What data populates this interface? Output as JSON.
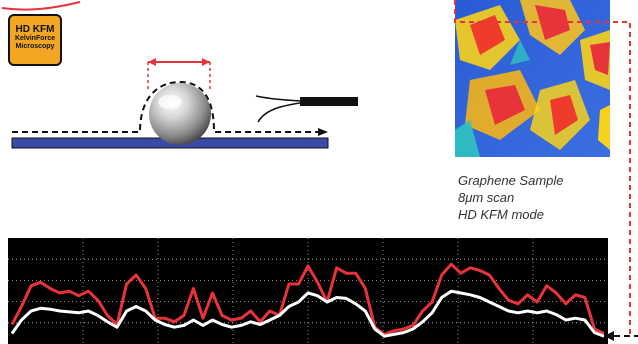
{
  "badge": {
    "title": "HD KFM",
    "subtitle_line1": "KelvinForce",
    "subtitle_line2": "Microscopy",
    "color": "#f2a623"
  },
  "caption": {
    "line1": "Graphene Sample",
    "line2": "8μm scan",
    "line3": "HD KFM mode"
  },
  "colors": {
    "substrate": "#3a4aa8",
    "measurement": "#e8333a",
    "background_profile": "#000000",
    "signal_bright": "#ffffff"
  },
  "icons": [
    "sphere-particle-icon",
    "cantilever-tip-icon",
    "measurement-arrow-icon"
  ],
  "chart_data": {
    "type": "line",
    "grid": true,
    "background": "#000000",
    "series": [
      {
        "color": "#e8333a",
        "values": [
          0.15,
          0.35,
          0.58,
          0.62,
          0.55,
          0.5,
          0.52,
          0.47,
          0.52,
          0.42,
          0.25,
          0.15,
          0.6,
          0.7,
          0.55,
          0.22,
          0.22,
          0.18,
          0.25,
          0.55,
          0.22,
          0.5,
          0.25,
          0.2,
          0.22,
          0.3,
          0.18,
          0.3,
          0.25,
          0.6,
          0.6,
          0.8,
          0.62,
          0.4,
          0.78,
          0.72,
          0.72,
          0.55,
          0.12,
          0.04,
          0.08,
          0.1,
          0.14,
          0.3,
          0.4,
          0.7,
          0.82,
          0.72,
          0.78,
          0.75,
          0.7,
          0.55,
          0.42,
          0.38,
          0.48,
          0.4,
          0.58,
          0.5,
          0.38,
          0.48,
          0.45,
          0.1,
          0.05
        ]
      },
      {
        "color": "#ffffff",
        "values": [
          0.05,
          0.2,
          0.3,
          0.33,
          0.32,
          0.3,
          0.29,
          0.28,
          0.3,
          0.25,
          0.18,
          0.12,
          0.3,
          0.35,
          0.3,
          0.2,
          0.15,
          0.12,
          0.14,
          0.2,
          0.14,
          0.2,
          0.15,
          0.12,
          0.14,
          0.18,
          0.15,
          0.2,
          0.25,
          0.35,
          0.4,
          0.5,
          0.47,
          0.4,
          0.45,
          0.44,
          0.38,
          0.3,
          0.1,
          0.02,
          0.04,
          0.06,
          0.1,
          0.18,
          0.28,
          0.45,
          0.52,
          0.5,
          0.48,
          0.45,
          0.4,
          0.35,
          0.3,
          0.28,
          0.3,
          0.28,
          0.3,
          0.26,
          0.2,
          0.22,
          0.2,
          0.06,
          0.02
        ]
      }
    ]
  }
}
